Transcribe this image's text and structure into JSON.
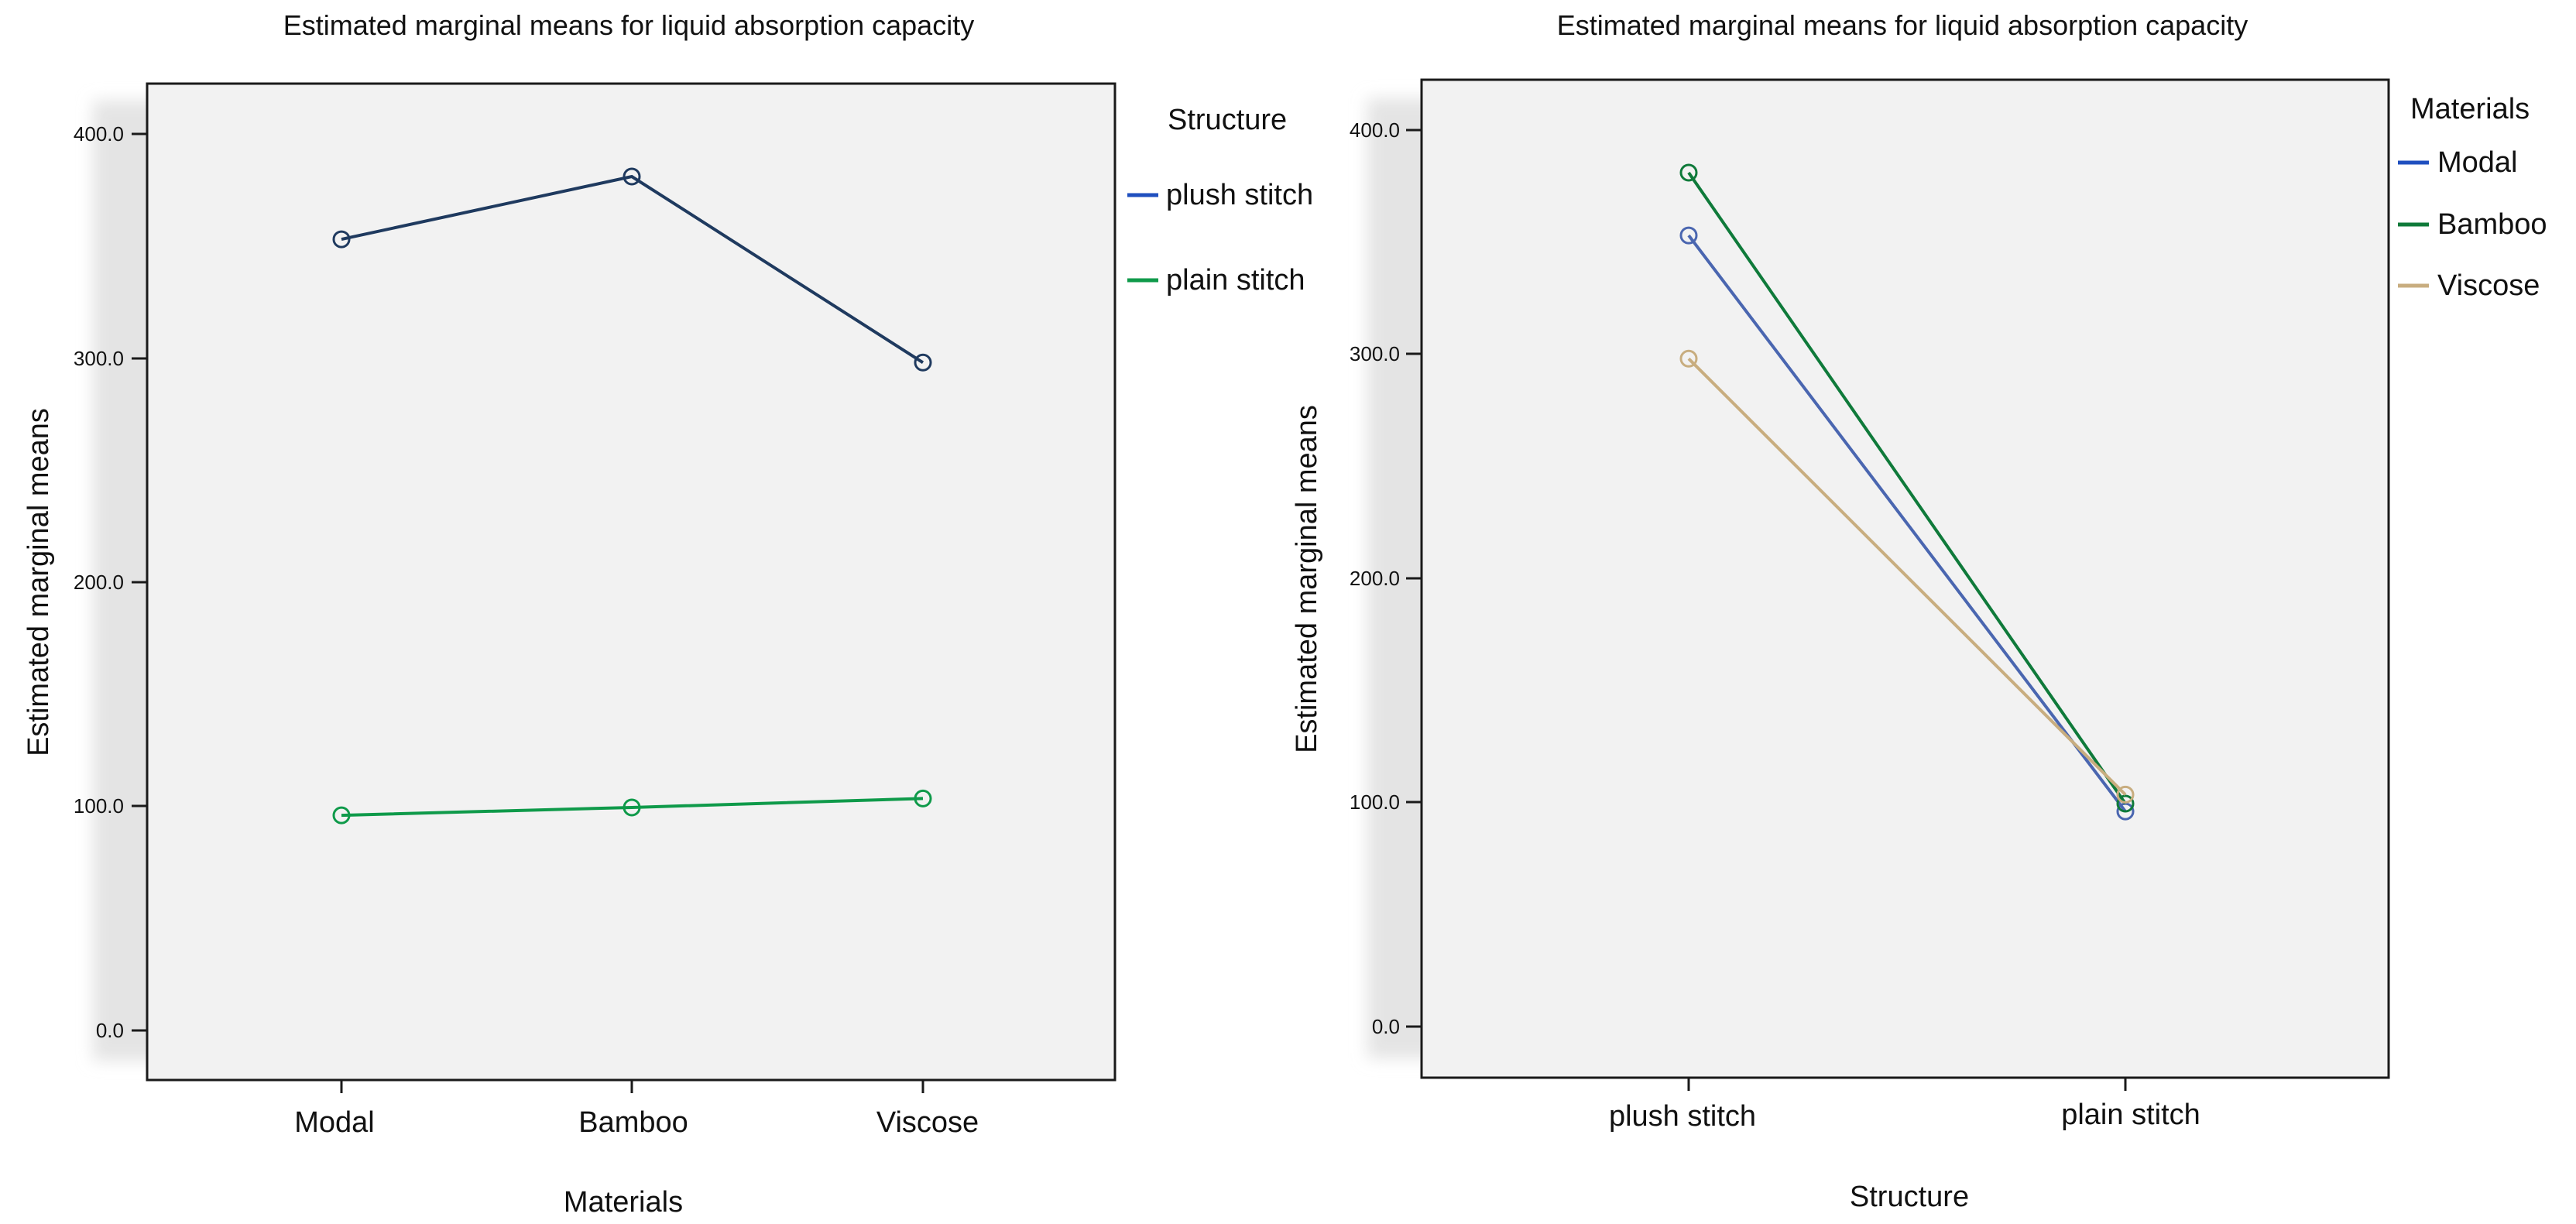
{
  "chart_data": [
    {
      "type": "line",
      "title": "Estimated marginal means for liquid absorption capacity",
      "xlabel": "Materials",
      "ylabel": "Estimated marginal means",
      "categories": [
        "Modal",
        "Bamboo",
        "Viscose"
      ],
      "ylim": [
        -20,
        425
      ],
      "yticks": [
        0,
        100,
        200,
        300,
        400
      ],
      "ytick_labels": [
        "0.0",
        "100.0",
        "200.0",
        "300.0",
        "400.0"
      ],
      "grid": false,
      "legend": {
        "title": "Structure",
        "position": "right",
        "entries": [
          "plush stitch",
          "plain stitch"
        ]
      },
      "series": [
        {
          "name": "plush stitch",
          "values": [
            353,
            381,
            298
          ],
          "color": "#1f3a5f",
          "legend_color": "#1f4fbf"
        },
        {
          "name": "plain stitch",
          "values": [
            96,
            99.5,
            103.5
          ],
          "color": "#0f9a4a",
          "legend_color": "#0f9a4a"
        }
      ]
    },
    {
      "type": "line",
      "title": "Estimated marginal means for liquid absorption capacity",
      "xlabel": "Structure",
      "ylabel": "Estimated marginal means",
      "categories": [
        "plush stitch",
        "plain stitch"
      ],
      "ylim": [
        -22,
        425
      ],
      "yticks": [
        0,
        100,
        200,
        300,
        400
      ],
      "ytick_labels": [
        "0.0",
        "100.0",
        "200.0",
        "300.0",
        "400.0"
      ],
      "grid": false,
      "legend": {
        "title": "Materials",
        "position": "right",
        "entries": [
          "Modal",
          "Bamboo",
          "Viscose"
        ]
      },
      "series": [
        {
          "name": "Modal",
          "values": [
            353,
            96
          ],
          "color": "#4a66b0",
          "legend_color": "#1f4fbf"
        },
        {
          "name": "Bamboo",
          "values": [
            381,
            99.5
          ],
          "color": "#0f7a3a",
          "legend_color": "#0f7a3a"
        },
        {
          "name": "Viscose",
          "values": [
            298,
            103.5
          ],
          "color": "#c8ad7f",
          "legend_color": "#c8ad7f"
        }
      ]
    }
  ]
}
